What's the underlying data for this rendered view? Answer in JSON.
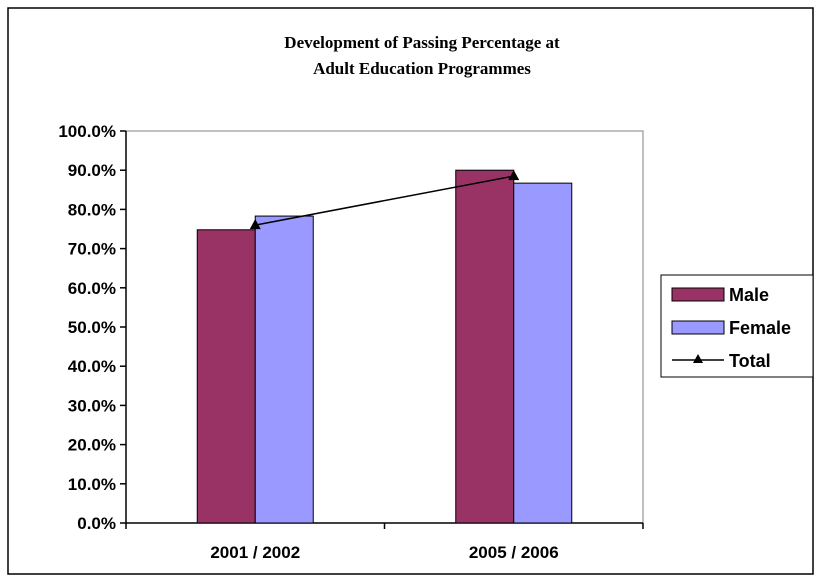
{
  "chart_data": {
    "type": "bar",
    "title_lines": [
      "Development of Passing Percentage at",
      "Adult Education Programmes"
    ],
    "xlabel": "",
    "ylabel": "",
    "categories": [
      "2001 / 2002",
      "2005 / 2006"
    ],
    "series": [
      {
        "name": "Male",
        "type": "bar",
        "color": "#993366",
        "values": [
          74.8,
          90.0
        ]
      },
      {
        "name": "Female",
        "type": "bar",
        "color": "#9999FF",
        "values": [
          78.3,
          86.7
        ]
      },
      {
        "name": "Total",
        "type": "line",
        "color": "#000000",
        "marker": "triangle",
        "values": [
          76.0,
          88.5
        ]
      }
    ],
    "ylim": [
      0,
      100
    ],
    "y_ticks": [
      "0.0%",
      "10.0%",
      "20.0%",
      "30.0%",
      "40.0%",
      "50.0%",
      "60.0%",
      "70.0%",
      "80.0%",
      "90.0%",
      "100.0%"
    ],
    "y_tick_values": [
      0,
      10,
      20,
      30,
      40,
      50,
      60,
      70,
      80,
      90,
      100
    ],
    "grid": false,
    "legend_position": "right"
  }
}
